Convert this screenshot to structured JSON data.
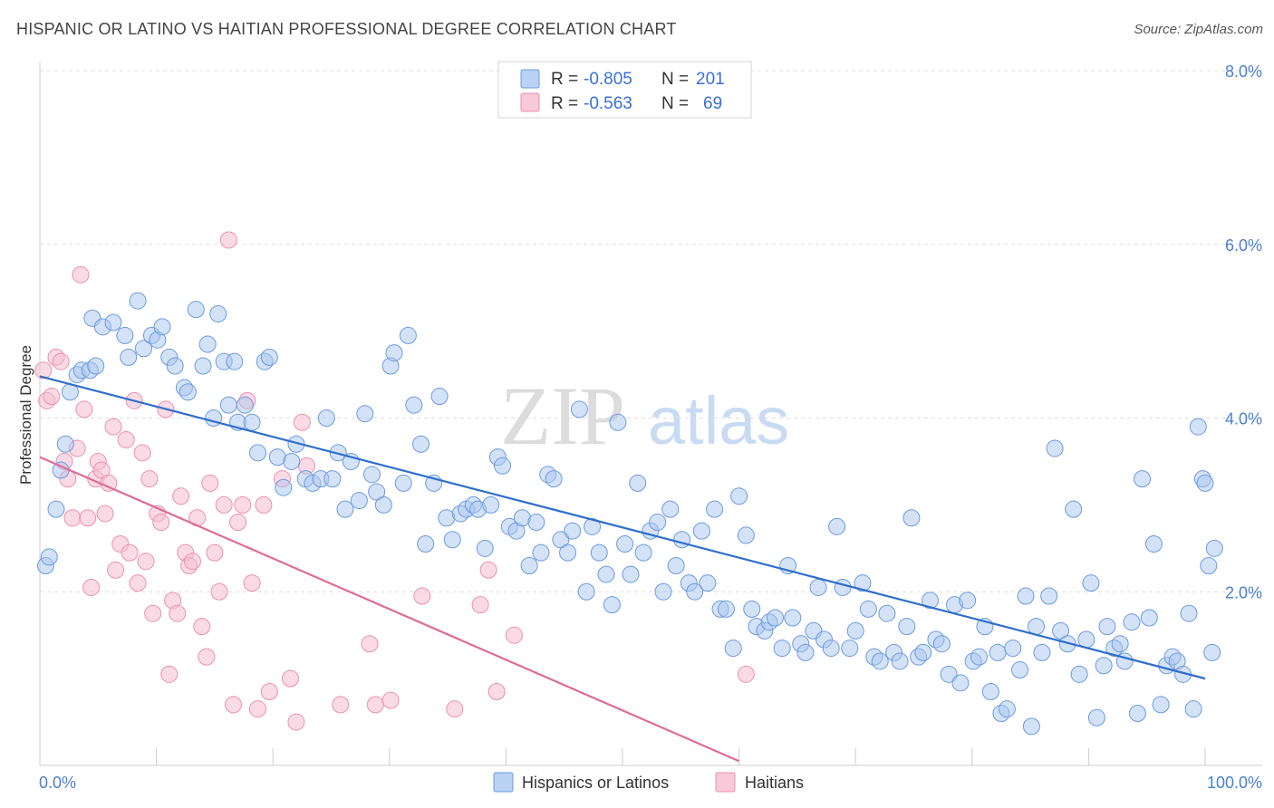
{
  "header": {
    "title": "HISPANIC OR LATINO VS HAITIAN PROFESSIONAL DEGREE CORRELATION CHART",
    "source": "Source: ZipAtlas.com"
  },
  "watermark": {
    "zip": "ZIP",
    "atlas": "atlas"
  },
  "legend": {
    "rows": [
      {
        "r_label": "R =",
        "r_value": "-0.805",
        "n_label": "N =",
        "n_value": "201",
        "color": "#9fc0ee"
      },
      {
        "r_label": "R =",
        "r_value": "-0.563",
        "n_label": "N =",
        "n_value": "69",
        "color": "#f4b0c6"
      }
    ]
  },
  "bottom_legend": {
    "hispanic": "Hispanics or Latinos",
    "haitian": "Haitians"
  },
  "axes": {
    "ylabel": "Professional Degree",
    "x_min_label": "0.0%",
    "x_max_label": "100.0%",
    "y_ticks": [
      "2.0%",
      "4.0%",
      "6.0%",
      "8.0%"
    ]
  },
  "chart_data": {
    "type": "scatter",
    "title": "HISPANIC OR LATINO VS HAITIAN PROFESSIONAL DEGREE CORRELATION CHART",
    "xlabel": "",
    "ylabel": "Professional Degree",
    "xlim": [
      0,
      100
    ],
    "ylim": [
      0,
      8.0
    ],
    "y_ticks": [
      2.0,
      4.0,
      6.0,
      8.0
    ],
    "grid": true,
    "legend_position": "top-center",
    "colors": {
      "hispanic": "#6b9be0",
      "hispanic_fill": "#a9c6ef",
      "haitian": "#ec8fb0",
      "haitian_fill": "#f6bdd0",
      "hispanic_line": "#2f6fcc",
      "haitian_line": "#e06b96"
    },
    "series": [
      {
        "name": "Hispanics or Latinos",
        "r": -0.805,
        "n": 201,
        "trend": {
          "x": [
            0,
            100
          ],
          "y": [
            4.48,
            1.0
          ]
        },
        "points": [
          [
            0.5,
            2.3
          ],
          [
            0.8,
            2.4
          ],
          [
            1.4,
            2.95
          ],
          [
            1.8,
            3.4
          ],
          [
            2.2,
            3.7
          ],
          [
            2.6,
            4.3
          ],
          [
            3.2,
            4.5
          ],
          [
            3.6,
            4.55
          ],
          [
            4.3,
            4.55
          ],
          [
            4.8,
            4.6
          ],
          [
            4.5,
            5.15
          ],
          [
            5.4,
            5.05
          ],
          [
            6.3,
            5.1
          ],
          [
            7.3,
            4.95
          ],
          [
            7.6,
            4.7
          ],
          [
            8.4,
            5.35
          ],
          [
            8.9,
            4.8
          ],
          [
            9.6,
            4.95
          ],
          [
            10.1,
            4.9
          ],
          [
            10.5,
            5.05
          ],
          [
            11.1,
            4.7
          ],
          [
            11.6,
            4.6
          ],
          [
            12.4,
            4.35
          ],
          [
            12.7,
            4.3
          ],
          [
            13.4,
            5.25
          ],
          [
            14.0,
            4.6
          ],
          [
            14.4,
            4.85
          ],
          [
            14.9,
            4.0
          ],
          [
            15.3,
            5.2
          ],
          [
            15.8,
            4.65
          ],
          [
            16.2,
            4.15
          ],
          [
            16.7,
            4.65
          ],
          [
            17.0,
            3.95
          ],
          [
            17.6,
            4.15
          ],
          [
            18.2,
            3.95
          ],
          [
            18.7,
            3.6
          ],
          [
            19.3,
            4.65
          ],
          [
            19.7,
            4.7
          ],
          [
            20.4,
            3.55
          ],
          [
            20.9,
            3.2
          ],
          [
            21.6,
            3.5
          ],
          [
            22.0,
            3.7
          ],
          [
            22.8,
            3.3
          ],
          [
            23.4,
            3.25
          ],
          [
            24.1,
            3.3
          ],
          [
            24.6,
            4.0
          ],
          [
            25.1,
            3.3
          ],
          [
            25.6,
            3.6
          ],
          [
            26.2,
            2.95
          ],
          [
            26.7,
            3.5
          ],
          [
            27.4,
            3.05
          ],
          [
            27.9,
            4.05
          ],
          [
            28.5,
            3.35
          ],
          [
            28.9,
            3.15
          ],
          [
            29.5,
            3.0
          ],
          [
            30.1,
            4.6
          ],
          [
            30.4,
            4.75
          ],
          [
            31.2,
            3.25
          ],
          [
            31.6,
            4.95
          ],
          [
            32.1,
            4.15
          ],
          [
            32.7,
            3.7
          ],
          [
            33.1,
            2.55
          ],
          [
            33.8,
            3.25
          ],
          [
            34.3,
            4.25
          ],
          [
            34.9,
            2.85
          ],
          [
            35.4,
            2.6
          ],
          [
            36.1,
            2.9
          ],
          [
            36.6,
            2.95
          ],
          [
            37.2,
            3.0
          ],
          [
            37.6,
            2.95
          ],
          [
            38.2,
            2.5
          ],
          [
            38.7,
            3.0
          ],
          [
            39.3,
            3.55
          ],
          [
            39.7,
            3.45
          ],
          [
            40.3,
            2.75
          ],
          [
            40.9,
            2.7
          ],
          [
            41.4,
            2.85
          ],
          [
            42.0,
            2.3
          ],
          [
            42.6,
            2.8
          ],
          [
            43.0,
            2.45
          ],
          [
            43.6,
            3.35
          ],
          [
            44.1,
            3.3
          ],
          [
            44.7,
            2.6
          ],
          [
            45.3,
            2.45
          ],
          [
            45.7,
            2.7
          ],
          [
            46.3,
            4.1
          ],
          [
            46.9,
            2.0
          ],
          [
            47.4,
            2.75
          ],
          [
            48.0,
            2.45
          ],
          [
            48.6,
            2.2
          ],
          [
            49.1,
            1.85
          ],
          [
            49.6,
            3.95
          ],
          [
            50.2,
            2.55
          ],
          [
            50.7,
            2.2
          ],
          [
            51.3,
            3.25
          ],
          [
            51.8,
            2.45
          ],
          [
            52.4,
            2.7
          ],
          [
            53.0,
            2.8
          ],
          [
            53.5,
            2.0
          ],
          [
            54.1,
            2.95
          ],
          [
            54.6,
            2.3
          ],
          [
            55.1,
            2.6
          ],
          [
            55.7,
            2.1
          ],
          [
            56.2,
            2.0
          ],
          [
            56.8,
            2.7
          ],
          [
            57.3,
            2.1
          ],
          [
            57.9,
            2.95
          ],
          [
            58.4,
            1.8
          ],
          [
            58.9,
            1.8
          ],
          [
            59.5,
            1.35
          ],
          [
            60.0,
            3.1
          ],
          [
            60.6,
            2.65
          ],
          [
            61.1,
            1.8
          ],
          [
            61.5,
            1.6
          ],
          [
            62.2,
            1.55
          ],
          [
            62.6,
            1.65
          ],
          [
            63.1,
            1.7
          ],
          [
            63.7,
            1.35
          ],
          [
            64.2,
            2.3
          ],
          [
            64.6,
            1.7
          ],
          [
            65.3,
            1.4
          ],
          [
            65.7,
            1.3
          ],
          [
            66.4,
            1.55
          ],
          [
            66.8,
            2.05
          ],
          [
            67.3,
            1.45
          ],
          [
            67.9,
            1.35
          ],
          [
            68.4,
            2.75
          ],
          [
            68.9,
            2.05
          ],
          [
            69.5,
            1.35
          ],
          [
            70.0,
            1.55
          ],
          [
            70.6,
            2.1
          ],
          [
            71.1,
            1.8
          ],
          [
            71.6,
            1.25
          ],
          [
            72.1,
            1.2
          ],
          [
            72.7,
            1.75
          ],
          [
            73.3,
            1.3
          ],
          [
            73.8,
            1.2
          ],
          [
            74.4,
            1.6
          ],
          [
            74.8,
            2.85
          ],
          [
            75.4,
            1.25
          ],
          [
            75.8,
            1.3
          ],
          [
            76.4,
            1.9
          ],
          [
            76.9,
            1.45
          ],
          [
            77.4,
            1.4
          ],
          [
            78.0,
            1.05
          ],
          [
            78.5,
            1.85
          ],
          [
            79.0,
            0.95
          ],
          [
            79.6,
            1.9
          ],
          [
            80.1,
            1.2
          ],
          [
            80.6,
            1.25
          ],
          [
            81.1,
            1.6
          ],
          [
            81.6,
            0.85
          ],
          [
            82.2,
            1.3
          ],
          [
            82.5,
            0.6
          ],
          [
            83.0,
            0.65
          ],
          [
            83.5,
            1.35
          ],
          [
            84.1,
            1.1
          ],
          [
            84.6,
            1.95
          ],
          [
            85.1,
            0.45
          ],
          [
            85.5,
            1.6
          ],
          [
            86.0,
            1.3
          ],
          [
            86.6,
            1.95
          ],
          [
            87.1,
            3.65
          ],
          [
            87.6,
            1.55
          ],
          [
            88.2,
            1.4
          ],
          [
            88.7,
            2.95
          ],
          [
            89.2,
            1.05
          ],
          [
            89.8,
            1.45
          ],
          [
            90.2,
            2.1
          ],
          [
            90.7,
            0.55
          ],
          [
            91.3,
            1.15
          ],
          [
            91.6,
            1.6
          ],
          [
            92.2,
            1.35
          ],
          [
            92.7,
            1.4
          ],
          [
            93.1,
            1.2
          ],
          [
            93.7,
            1.65
          ],
          [
            94.2,
            0.6
          ],
          [
            94.6,
            3.3
          ],
          [
            95.2,
            1.7
          ],
          [
            95.6,
            2.55
          ],
          [
            96.2,
            0.7
          ],
          [
            96.7,
            1.15
          ],
          [
            97.2,
            1.25
          ],
          [
            97.6,
            1.2
          ],
          [
            98.1,
            1.05
          ],
          [
            98.6,
            1.75
          ],
          [
            99.0,
            0.65
          ],
          [
            99.4,
            3.9
          ],
          [
            99.8,
            3.3
          ],
          [
            100.0,
            3.25
          ],
          [
            100.3,
            2.3
          ],
          [
            100.8,
            2.5
          ],
          [
            100.6,
            1.3
          ]
        ]
      },
      {
        "name": "Haitians",
        "r": -0.563,
        "n": 69,
        "trend": {
          "x": [
            0,
            60
          ],
          "y": [
            3.55,
            0.05
          ]
        },
        "points": [
          [
            0.3,
            4.55
          ],
          [
            0.6,
            4.2
          ],
          [
            1.0,
            4.25
          ],
          [
            1.4,
            4.7
          ],
          [
            1.8,
            4.65
          ],
          [
            2.1,
            3.5
          ],
          [
            2.4,
            3.3
          ],
          [
            2.8,
            2.85
          ],
          [
            3.2,
            3.65
          ],
          [
            3.5,
            5.65
          ],
          [
            3.8,
            4.1
          ],
          [
            4.1,
            2.85
          ],
          [
            4.4,
            2.05
          ],
          [
            4.8,
            3.3
          ],
          [
            5.0,
            3.5
          ],
          [
            5.3,
            3.4
          ],
          [
            5.6,
            2.9
          ],
          [
            5.9,
            3.25
          ],
          [
            6.3,
            3.9
          ],
          [
            6.5,
            2.25
          ],
          [
            6.9,
            2.55
          ],
          [
            7.4,
            3.75
          ],
          [
            7.7,
            2.45
          ],
          [
            8.1,
            4.2
          ],
          [
            8.4,
            2.1
          ],
          [
            8.8,
            3.6
          ],
          [
            9.1,
            2.35
          ],
          [
            9.4,
            3.3
          ],
          [
            9.7,
            1.75
          ],
          [
            10.1,
            2.9
          ],
          [
            10.4,
            2.8
          ],
          [
            10.8,
            4.1
          ],
          [
            11.1,
            1.05
          ],
          [
            11.4,
            1.9
          ],
          [
            11.8,
            1.75
          ],
          [
            12.1,
            3.1
          ],
          [
            12.5,
            2.45
          ],
          [
            12.8,
            2.3
          ],
          [
            13.1,
            2.35
          ],
          [
            13.5,
            2.85
          ],
          [
            13.9,
            1.6
          ],
          [
            14.3,
            1.25
          ],
          [
            14.6,
            3.25
          ],
          [
            15.0,
            2.45
          ],
          [
            15.4,
            2.0
          ],
          [
            15.8,
            3.0
          ],
          [
            16.2,
            6.05
          ],
          [
            16.6,
            0.7
          ],
          [
            17.0,
            2.8
          ],
          [
            17.4,
            3.0
          ],
          [
            17.8,
            4.2
          ],
          [
            18.2,
            2.1
          ],
          [
            18.7,
            0.65
          ],
          [
            19.2,
            3.0
          ],
          [
            19.7,
            0.85
          ],
          [
            20.8,
            3.3
          ],
          [
            21.5,
            1.0
          ],
          [
            22.0,
            0.5
          ],
          [
            22.5,
            3.95
          ],
          [
            22.9,
            3.45
          ],
          [
            25.8,
            0.7
          ],
          [
            28.3,
            1.4
          ],
          [
            28.8,
            0.7
          ],
          [
            30.1,
            0.75
          ],
          [
            32.8,
            1.95
          ],
          [
            35.6,
            0.65
          ],
          [
            37.8,
            1.85
          ],
          [
            38.5,
            2.25
          ],
          [
            39.2,
            0.85
          ],
          [
            40.7,
            1.5
          ],
          [
            60.6,
            1.05
          ]
        ]
      }
    ]
  }
}
